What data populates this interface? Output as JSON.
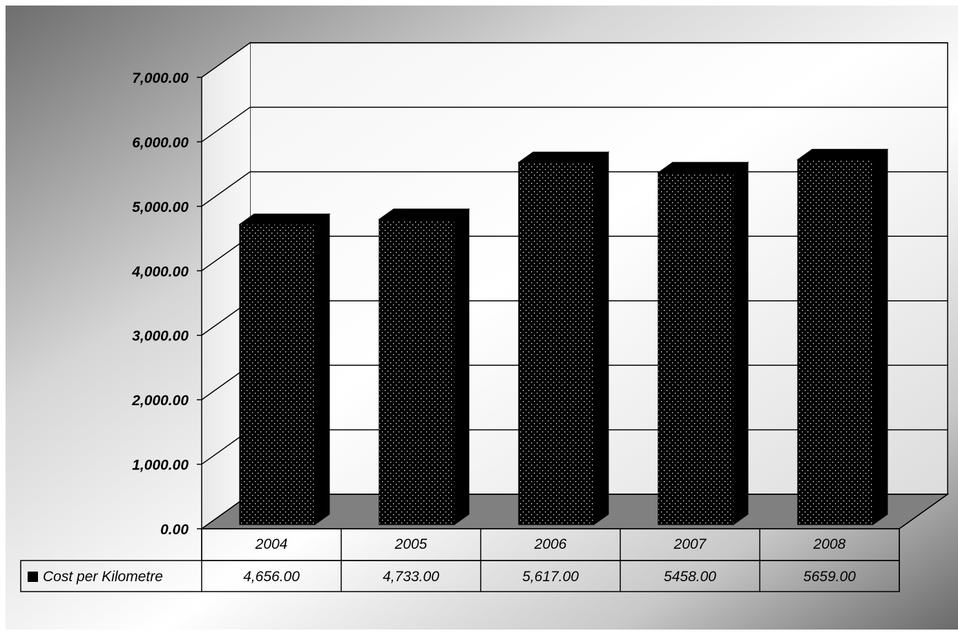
{
  "chart_data": {
    "type": "bar",
    "title": "",
    "xlabel": "",
    "ylabel": "",
    "categories": [
      "2004",
      "2005",
      "2006",
      "2007",
      "2008"
    ],
    "series": [
      {
        "name": "Cost per Kilometre",
        "values": [
          4656,
          4733,
          5617,
          5458,
          5659
        ],
        "value_labels": [
          "4,656.00",
          "4,733.00",
          "5,617.00",
          "5458.00",
          "5659.00"
        ]
      }
    ],
    "ylim": [
      0,
      7000
    ],
    "yticks": [
      0,
      1000,
      2000,
      3000,
      4000,
      5000,
      6000,
      7000
    ],
    "ytick_labels": [
      "0.00",
      "1,000.00",
      "2,000.00",
      "3,000.00",
      "4,000.00",
      "5,000.00",
      "6,000.00",
      "7,000.00"
    ],
    "grid": true,
    "style": "3d-column",
    "data_table": true,
    "legend_placement": "bottom-left (in data table)",
    "colors": {
      "bar": "#000000",
      "bar_dots": "#ffffff",
      "floor": "#808080"
    }
  }
}
